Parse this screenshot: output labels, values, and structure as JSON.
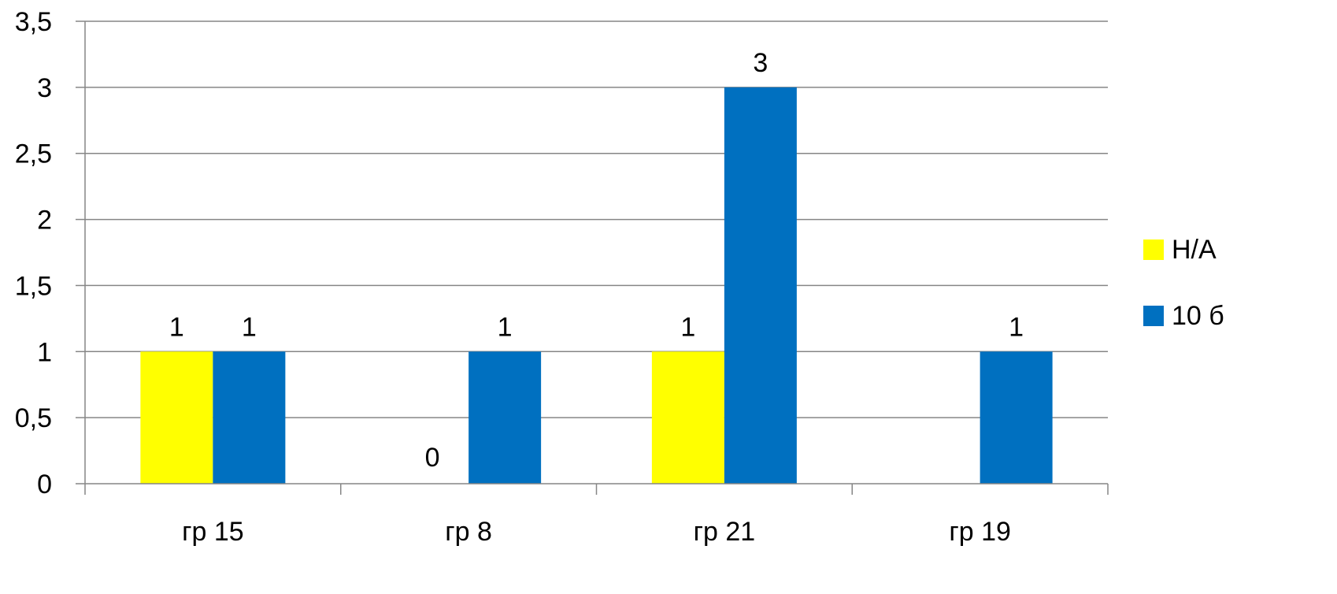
{
  "chart_data": {
    "type": "bar",
    "categories": [
      "гр 15",
      "гр 8",
      "гр 21",
      "гр 19"
    ],
    "series": [
      {
        "name": "Н/А",
        "color": "#FFFF00",
        "values": [
          1,
          0,
          1,
          null
        ],
        "labels": [
          "1",
          "0",
          "1",
          ""
        ]
      },
      {
        "name": "10 б",
        "color": "#0070C0",
        "values": [
          1,
          1,
          3,
          1
        ],
        "labels": [
          "1",
          "1",
          "3",
          "1"
        ]
      }
    ],
    "ylim": [
      0,
      3.5
    ],
    "yticks": [
      "0",
      "0,5",
      "1",
      "1,5",
      "2",
      "2,5",
      "3",
      "3,5"
    ],
    "grid": true,
    "legend_position": "right",
    "title": "",
    "xlabel": "",
    "ylabel": ""
  }
}
